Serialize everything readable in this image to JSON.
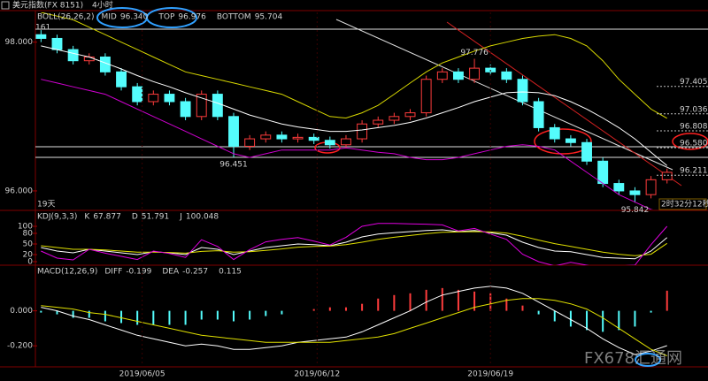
{
  "header": {
    "title": "美元指数(FX 8151)",
    "period": "4小时"
  },
  "labels": {
    "top_left": "161",
    "days": "19天",
    "countdown": "2时32分12秒",
    "watermark": "FX678汇通网"
  },
  "chart_data": [
    {
      "type": "candlestick",
      "legend_title": "BOLL(26,26,2)",
      "legend_title_color": "#e0e000",
      "xlim": [
        -0.35,
        41
      ],
      "ylim": [
        95.75,
        98.4
      ],
      "yticks": [
        {
          "value": 98,
          "label": "98.000"
        },
        {
          "value": 96,
          "label": "96.000"
        }
      ],
      "up_color": "#ff3c3c",
      "down_color": "#54fcfc",
      "open": [
        98.1,
        98.05,
        97.9,
        97.75,
        97.8,
        97.6,
        97.4,
        97.2,
        97.3,
        97.2,
        97.0,
        97.3,
        97.0,
        96.6,
        96.7,
        96.75,
        96.7,
        96.72,
        96.68,
        96.62,
        96.7,
        96.9,
        96.95,
        97.0,
        97.05,
        97.5,
        97.6,
        97.5,
        97.65,
        97.6,
        97.5,
        97.2,
        96.85,
        96.7,
        96.65,
        96.4,
        96.1,
        96.0,
        95.95,
        96.15
      ],
      "high": [
        98.161,
        98.1,
        97.95,
        97.85,
        97.85,
        97.65,
        97.45,
        97.35,
        97.35,
        97.25,
        97.35,
        97.35,
        97.05,
        96.75,
        96.8,
        96.8,
        96.77,
        96.77,
        96.73,
        96.75,
        96.95,
        97.0,
        97.05,
        97.1,
        97.55,
        97.65,
        97.65,
        97.776,
        97.7,
        97.65,
        97.55,
        97.25,
        96.9,
        96.75,
        96.7,
        96.45,
        96.15,
        96.05,
        96.2,
        96.3
      ],
      "low": [
        98.0,
        97.85,
        97.7,
        97.7,
        97.55,
        97.35,
        97.15,
        97.15,
        97.15,
        96.95,
        96.95,
        96.95,
        96.451,
        96.55,
        96.65,
        96.65,
        96.65,
        96.63,
        96.57,
        96.57,
        96.65,
        96.85,
        96.9,
        96.95,
        97.0,
        97.45,
        97.45,
        97.45,
        97.55,
        97.45,
        97.15,
        96.8,
        96.65,
        96.6,
        96.35,
        96.05,
        95.95,
        95.842,
        95.9,
        96.1
      ],
      "close": [
        98.05,
        97.9,
        97.75,
        97.8,
        97.6,
        97.4,
        97.2,
        97.3,
        97.2,
        97.0,
        97.3,
        97.0,
        96.6,
        96.7,
        96.75,
        96.7,
        96.72,
        96.68,
        96.62,
        96.7,
        96.9,
        96.95,
        97.0,
        97.05,
        97.5,
        97.6,
        97.5,
        97.65,
        97.6,
        97.5,
        97.2,
        96.85,
        96.7,
        96.65,
        96.4,
        96.1,
        96.0,
        95.95,
        96.15,
        96.25
      ],
      "series": [
        {
          "name": "MID",
          "legend_value": "96.340",
          "color": "#ffffff",
          "values": [
            97.95,
            97.9,
            97.85,
            97.8,
            97.72,
            97.64,
            97.55,
            97.47,
            97.4,
            97.32,
            97.25,
            97.18,
            97.1,
            97.02,
            96.96,
            96.9,
            96.86,
            96.83,
            96.8,
            96.8,
            96.82,
            96.85,
            96.88,
            96.92,
            96.98,
            97.05,
            97.12,
            97.2,
            97.26,
            97.32,
            97.33,
            97.32,
            97.28,
            97.2,
            97.1,
            96.98,
            96.85,
            96.7,
            96.52,
            96.34
          ]
        },
        {
          "name": "TOP",
          "legend_value": "96.976",
          "color": "#d8d800",
          "values": [
            98.4,
            98.35,
            98.3,
            98.2,
            98.1,
            98.0,
            97.9,
            97.8,
            97.7,
            97.6,
            97.55,
            97.5,
            97.45,
            97.4,
            97.35,
            97.3,
            97.2,
            97.1,
            97.0,
            96.98,
            97.05,
            97.15,
            97.3,
            97.45,
            97.6,
            97.72,
            97.8,
            97.88,
            97.95,
            98.0,
            98.05,
            98.08,
            98.1,
            98.05,
            97.95,
            97.75,
            97.5,
            97.3,
            97.1,
            96.976
          ]
        },
        {
          "name": "BOTTOM",
          "legend_value": "95.704",
          "color": "#d000d0",
          "values": [
            97.5,
            97.45,
            97.4,
            97.35,
            97.3,
            97.2,
            97.1,
            97.0,
            96.9,
            96.8,
            96.7,
            96.6,
            96.5,
            96.45,
            96.5,
            96.55,
            96.55,
            96.55,
            96.55,
            96.58,
            96.55,
            96.52,
            96.5,
            96.45,
            96.42,
            96.42,
            96.45,
            96.5,
            96.55,
            96.6,
            96.62,
            96.6,
            96.55,
            96.4,
            96.25,
            96.1,
            95.95,
            95.85,
            95.75,
            95.704
          ]
        }
      ],
      "levels": [
        {
          "value": 97.405,
          "label": "97.405"
        },
        {
          "value": 97.036,
          "label": "97.036"
        },
        {
          "value": 96.808,
          "label": "96.808"
        },
        {
          "value": 96.58,
          "label": "96.580"
        },
        {
          "value": 96.211,
          "label": "96.211"
        }
      ],
      "annotations": [
        {
          "index": 27,
          "value": 97.776,
          "color": "#ff5050"
        },
        {
          "index": 12,
          "value": 96.451,
          "color": "#54fcfc"
        },
        {
          "index": 37,
          "value": 95.842,
          "color": "#54fcfc"
        }
      ]
    },
    {
      "type": "line",
      "legend_title": "KDJ(9,3,3)",
      "legend_title_color": "#e0e000",
      "xlim": [
        -0.35,
        41
      ],
      "ylim": [
        -5,
        110
      ],
      "yticks": [
        0,
        20,
        50,
        80,
        100
      ],
      "series": [
        {
          "name": "K",
          "legend_value": "67.877",
          "color": "#ffffff",
          "values": [
            40,
            30,
            25,
            35,
            30,
            25,
            20,
            28,
            25,
            20,
            40,
            35,
            20,
            30,
            40,
            45,
            50,
            48,
            45,
            55,
            70,
            78,
            82,
            85,
            88,
            90,
            85,
            88,
            82,
            75,
            55,
            40,
            30,
            28,
            20,
            12,
            10,
            8,
            30,
            67.877
          ]
        },
        {
          "name": "D",
          "legend_value": "51.791",
          "color": "#e0e000",
          "values": [
            45,
            40,
            35,
            35,
            33,
            30,
            27,
            27,
            26,
            24,
            29,
            31,
            27,
            28,
            32,
            36,
            41,
            43,
            44,
            48,
            55,
            63,
            69,
            74,
            79,
            83,
            84,
            85,
            84,
            81,
            72,
            61,
            51,
            43,
            35,
            27,
            21,
            17,
            21,
            51.791
          ]
        },
        {
          "name": "J",
          "legend_value": "100.048",
          "color": "#e000e0",
          "values": [
            30,
            10,
            5,
            35,
            24,
            15,
            6,
            30,
            23,
            12,
            62,
            43,
            6,
            34,
            56,
            63,
            68,
            58,
            47,
            69,
            100,
            108,
            108,
            107,
            106,
            104,
            87,
            94,
            78,
            63,
            21,
            0,
            -12,
            -2,
            -10,
            -18,
            -12,
            -10,
            48,
            100.048
          ]
        }
      ]
    },
    {
      "type": "macd",
      "legend_title": "MACD(12,26,9)",
      "legend_title_color": "#e0e000",
      "xlim": [
        -0.35,
        41
      ],
      "ylim": [
        -0.31,
        0.2
      ],
      "yticks": [
        {
          "value": 0,
          "label": "0.000"
        },
        {
          "value": -0.2,
          "label": "-0.200"
        }
      ],
      "xticks": [
        {
          "value": 6.3,
          "label": "2019/06/05"
        },
        {
          "value": 17.2,
          "label": "2019/06/12"
        },
        {
          "value": 28,
          "label": "2019/06/19"
        }
      ],
      "series": [
        {
          "name": "DIFF",
          "legend_value": "-0.199",
          "color": "#ffffff",
          "values": [
            0.02,
            0.0,
            -0.03,
            -0.05,
            -0.08,
            -0.11,
            -0.14,
            -0.16,
            -0.18,
            -0.2,
            -0.19,
            -0.2,
            -0.22,
            -0.22,
            -0.21,
            -0.2,
            -0.18,
            -0.17,
            -0.16,
            -0.15,
            -0.12,
            -0.08,
            -0.04,
            0.0,
            0.05,
            0.09,
            0.11,
            0.13,
            0.14,
            0.13,
            0.1,
            0.05,
            0.0,
            -0.05,
            -0.1,
            -0.16,
            -0.21,
            -0.25,
            -0.23,
            -0.199
          ]
        },
        {
          "name": "DEA",
          "legend_value": "-0.257",
          "color": "#e0e000",
          "values": [
            0.03,
            0.02,
            0.01,
            -0.01,
            -0.02,
            -0.04,
            -0.06,
            -0.08,
            -0.1,
            -0.12,
            -0.14,
            -0.15,
            -0.16,
            -0.17,
            -0.18,
            -0.18,
            -0.18,
            -0.18,
            -0.18,
            -0.17,
            -0.16,
            -0.15,
            -0.13,
            -0.1,
            -0.07,
            -0.04,
            -0.01,
            0.02,
            0.04,
            0.06,
            0.07,
            0.07,
            0.06,
            0.04,
            0.01,
            -0.04,
            -0.1,
            -0.16,
            -0.22,
            -0.257
          ]
        }
      ],
      "histogram": {
        "legend_value": "0.115",
        "up_color": "#ff3c3c",
        "down_color": "#54fcfc",
        "values": [
          -0.01,
          -0.02,
          -0.04,
          -0.04,
          -0.06,
          -0.07,
          -0.08,
          -0.08,
          -0.08,
          -0.08,
          -0.05,
          -0.05,
          -0.06,
          -0.05,
          -0.03,
          -0.02,
          0.0,
          0.01,
          0.02,
          0.02,
          0.04,
          0.07,
          0.09,
          0.1,
          0.12,
          0.13,
          0.12,
          0.11,
          0.1,
          0.07,
          0.03,
          -0.02,
          -0.06,
          -0.09,
          -0.11,
          -0.12,
          -0.11,
          -0.09,
          -0.01,
          0.115
        ]
      }
    }
  ]
}
